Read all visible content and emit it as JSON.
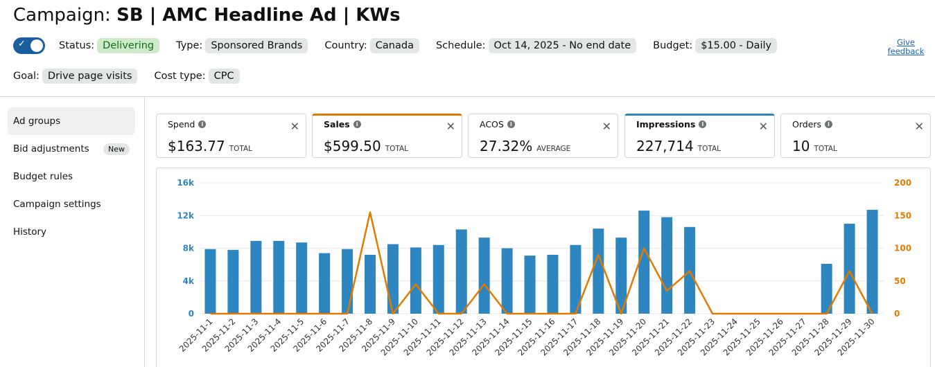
{
  "header": {
    "title_prefix": "Campaign:",
    "title_name": "SB | AMC Headline Ad | KWs",
    "feedback_link": "Give feedback"
  },
  "info": {
    "toggle_on": true,
    "status": {
      "label": "Status:",
      "value": "Delivering"
    },
    "type": {
      "label": "Type:",
      "value": "Sponsored Brands"
    },
    "country": {
      "label": "Country:",
      "value": "Canada"
    },
    "schedule": {
      "label": "Schedule:",
      "value": "Oct 14, 2025 - No end date"
    },
    "budget": {
      "label": "Budget:",
      "value": "$15.00 - Daily"
    },
    "goal": {
      "label": "Goal:",
      "value": "Drive page visits"
    },
    "cost_type": {
      "label": "Cost type:",
      "value": "CPC"
    }
  },
  "sidebar": {
    "items": [
      {
        "label": "Ad groups"
      },
      {
        "label": "Bid adjustments",
        "badge": "New"
      },
      {
        "label": "Budget rules"
      },
      {
        "label": "Campaign settings"
      },
      {
        "label": "History"
      }
    ]
  },
  "metrics": [
    {
      "label": "Spend",
      "value": "$163.77",
      "suffix": "TOTAL"
    },
    {
      "label": "Sales",
      "value": "$599.50",
      "suffix": "TOTAL",
      "color": "#e07b00"
    },
    {
      "label": "ACOS",
      "value": "27.32%",
      "suffix": "AVERAGE"
    },
    {
      "label": "Impressions",
      "value": "227,714",
      "suffix": "TOTAL",
      "color": "#2e86c1"
    },
    {
      "label": "Orders",
      "value": "10",
      "suffix": "TOTAL"
    }
  ],
  "colors": {
    "impressions": "#2e86c1",
    "sales": "#e07b00"
  },
  "chart_data": {
    "type": "bar",
    "categories": [
      "2025-11-1",
      "2025-11-2",
      "2025-11-3",
      "2025-11-4",
      "2025-11-5",
      "2025-11-6",
      "2025-11-7",
      "2025-11-8",
      "2025-11-9",
      "2025-11-10",
      "2025-11-11",
      "2025-11-12",
      "2025-11-13",
      "2025-11-14",
      "2025-11-15",
      "2025-11-16",
      "2025-11-17",
      "2025-11-18",
      "2025-11-19",
      "2025-11-20",
      "2025-11-21",
      "2025-11-22",
      "2025-11-23",
      "2025-11-24",
      "2025-11-25",
      "2025-11-26",
      "2025-11-27",
      "2025-11-28",
      "2025-11-29",
      "2025-11-30"
    ],
    "series": [
      {
        "name": "Impressions",
        "type": "bar",
        "axis": "left",
        "values": [
          7900,
          7800,
          8900,
          8900,
          8700,
          7400,
          7900,
          7200,
          8500,
          8100,
          8400,
          10300,
          9300,
          8000,
          7100,
          7200,
          8400,
          10400,
          9300,
          12600,
          11800,
          10600,
          0,
          0,
          0,
          0,
          0,
          6100,
          11000,
          12700
        ]
      },
      {
        "name": "Sales",
        "type": "line",
        "axis": "right",
        "values": [
          0,
          0,
          0,
          0,
          0,
          0,
          0,
          155,
          0,
          45,
          0,
          0,
          45,
          0,
          0,
          0,
          0,
          90,
          0,
          100,
          35,
          65,
          0,
          0,
          0,
          0,
          0,
          0,
          65,
          0
        ]
      }
    ],
    "left_axis": {
      "ticks": [
        "16k",
        "12k",
        "8k",
        "4k",
        "0"
      ],
      "ylim": [
        0,
        16000
      ]
    },
    "right_axis": {
      "ticks": [
        "200",
        "150",
        "100",
        "50",
        "0"
      ],
      "ylim": [
        0,
        200
      ]
    }
  }
}
